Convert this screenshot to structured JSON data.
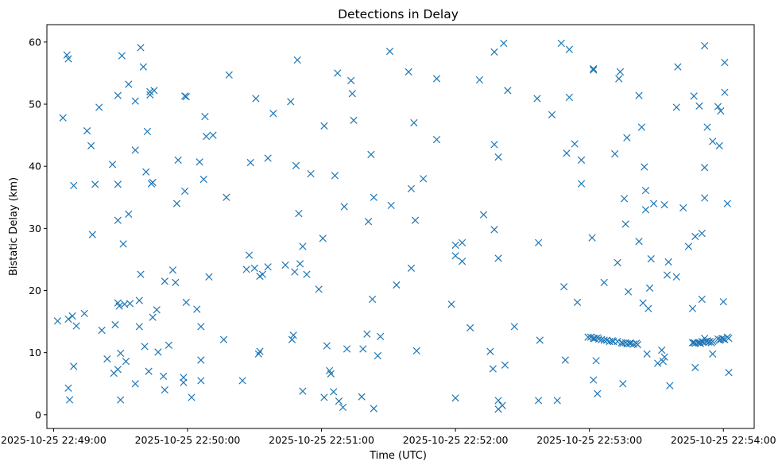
{
  "chart_data": {
    "type": "scatter",
    "title": "Detections in Delay",
    "xlabel": "Time (UTC)",
    "ylabel": "Bistatic Delay (km)",
    "x_units": "minutes after 2025-10-25 22:49:00 UTC",
    "xlim": [
      -0.05,
      5.23
    ],
    "ylim": [
      -2.2,
      62.8
    ],
    "xticks": [
      0,
      1,
      2,
      3,
      4,
      5
    ],
    "xtick_labels": [
      "2025-10-25 22:49:00",
      "2025-10-25 22:50:00",
      "2025-10-25 22:51:00",
      "2025-10-25 22:52:00",
      "2025-10-25 22:53:00",
      "2025-10-25 22:54:00"
    ],
    "yticks": [
      0,
      10,
      20,
      30,
      40,
      50,
      60
    ],
    "ytick_labels": [
      "0",
      "10",
      "20",
      "30",
      "40",
      "50",
      "60"
    ],
    "marker": "x",
    "color": "#1f77b4",
    "series": [
      {
        "name": "detections",
        "points": [
          [
            0.03,
            15.1
          ],
          [
            0.07,
            47.8
          ],
          [
            0.1,
            57.9
          ],
          [
            0.11,
            57.3
          ],
          [
            0.11,
            4.3
          ],
          [
            0.12,
            2.4
          ],
          [
            0.11,
            15.4
          ],
          [
            0.14,
            15.9
          ],
          [
            0.15,
            7.8
          ],
          [
            0.15,
            36.9
          ],
          [
            0.17,
            14.3
          ],
          [
            0.23,
            16.3
          ],
          [
            0.25,
            45.7
          ],
          [
            0.28,
            43.3
          ],
          [
            0.29,
            29.0
          ],
          [
            0.31,
            37.1
          ],
          [
            0.34,
            49.5
          ],
          [
            0.36,
            13.6
          ],
          [
            0.4,
            9.0
          ],
          [
            0.44,
            40.3
          ],
          [
            0.45,
            6.7
          ],
          [
            0.46,
            14.5
          ],
          [
            0.48,
            7.3
          ],
          [
            0.48,
            37.1
          ],
          [
            0.48,
            31.3
          ],
          [
            0.48,
            51.4
          ],
          [
            0.48,
            18.0
          ],
          [
            0.49,
            17.5
          ],
          [
            0.5,
            2.4
          ],
          [
            0.5,
            9.9
          ],
          [
            0.51,
            57.8
          ],
          [
            0.52,
            27.5
          ],
          [
            0.53,
            17.8
          ],
          [
            0.54,
            8.6
          ],
          [
            0.56,
            32.3
          ],
          [
            0.56,
            53.2
          ],
          [
            0.57,
            17.9
          ],
          [
            0.61,
            42.6
          ],
          [
            0.61,
            50.5
          ],
          [
            0.61,
            5.0
          ],
          [
            0.64,
            14.2
          ],
          [
            0.64,
            18.4
          ],
          [
            0.65,
            22.6
          ],
          [
            0.65,
            59.1
          ],
          [
            0.67,
            56.0
          ],
          [
            0.68,
            11.0
          ],
          [
            0.69,
            39.1
          ],
          [
            0.7,
            45.6
          ],
          [
            0.71,
            7.0
          ],
          [
            0.72,
            51.5
          ],
          [
            0.72,
            52.0
          ],
          [
            0.73,
            37.2
          ],
          [
            0.74,
            37.4
          ],
          [
            0.74,
            15.7
          ],
          [
            0.75,
            52.2
          ],
          [
            0.77,
            16.9
          ],
          [
            0.78,
            10.1
          ],
          [
            0.82,
            6.2
          ],
          [
            0.83,
            21.5
          ],
          [
            0.83,
            4.0
          ],
          [
            0.86,
            11.2
          ],
          [
            0.89,
            23.3
          ],
          [
            0.91,
            21.3
          ],
          [
            0.92,
            34.0
          ],
          [
            0.93,
            41.0
          ],
          [
            0.97,
            5.2
          ],
          [
            0.97,
            6.0
          ],
          [
            0.98,
            36.0
          ],
          [
            0.98,
            51.3
          ],
          [
            0.99,
            51.2
          ],
          [
            0.99,
            18.1
          ],
          [
            1.03,
            2.8
          ],
          [
            1.07,
            17.0
          ],
          [
            1.09,
            40.7
          ],
          [
            1.1,
            14.2
          ],
          [
            1.1,
            8.8
          ],
          [
            1.1,
            5.5
          ],
          [
            1.12,
            37.9
          ],
          [
            1.13,
            48.0
          ],
          [
            1.14,
            44.8
          ],
          [
            1.16,
            22.2
          ],
          [
            1.19,
            45.0
          ],
          [
            1.27,
            12.1
          ],
          [
            1.29,
            35.0
          ],
          [
            1.31,
            54.7
          ],
          [
            1.41,
            5.5
          ],
          [
            1.44,
            23.4
          ],
          [
            1.46,
            25.7
          ],
          [
            1.47,
            40.6
          ],
          [
            1.5,
            23.6
          ],
          [
            1.51,
            50.9
          ],
          [
            1.53,
            9.8
          ],
          [
            1.54,
            22.3
          ],
          [
            1.54,
            10.2
          ],
          [
            1.56,
            22.6
          ],
          [
            1.6,
            41.3
          ],
          [
            1.6,
            23.8
          ],
          [
            1.64,
            48.5
          ],
          [
            1.73,
            24.1
          ],
          [
            1.77,
            50.4
          ],
          [
            1.78,
            12.1
          ],
          [
            1.79,
            12.8
          ],
          [
            1.8,
            23.0
          ],
          [
            1.81,
            40.1
          ],
          [
            1.83,
            32.4
          ],
          [
            1.82,
            57.1
          ],
          [
            1.84,
            24.3
          ],
          [
            1.86,
            27.1
          ],
          [
            1.86,
            3.8
          ],
          [
            1.89,
            22.6
          ],
          [
            1.92,
            38.8
          ],
          [
            1.98,
            20.2
          ],
          [
            2.01,
            28.4
          ],
          [
            2.02,
            46.5
          ],
          [
            2.02,
            2.8
          ],
          [
            2.04,
            11.1
          ],
          [
            2.06,
            7.1
          ],
          [
            2.07,
            6.6
          ],
          [
            2.09,
            3.7
          ],
          [
            2.1,
            38.5
          ],
          [
            2.12,
            55.0
          ],
          [
            2.13,
            2.2
          ],
          [
            2.16,
            1.2
          ],
          [
            2.17,
            33.5
          ],
          [
            2.19,
            10.6
          ],
          [
            2.22,
            53.8
          ],
          [
            2.23,
            51.7
          ],
          [
            2.24,
            47.4
          ],
          [
            2.3,
            2.9
          ],
          [
            2.31,
            10.6
          ],
          [
            2.34,
            13.0
          ],
          [
            2.35,
            31.1
          ],
          [
            2.37,
            41.9
          ],
          [
            2.38,
            18.6
          ],
          [
            2.39,
            1.0
          ],
          [
            2.39,
            35.0
          ],
          [
            2.42,
            9.5
          ],
          [
            2.44,
            12.6
          ],
          [
            2.51,
            58.5
          ],
          [
            2.52,
            33.7
          ],
          [
            2.56,
            20.9
          ],
          [
            2.65,
            55.2
          ],
          [
            2.67,
            23.6
          ],
          [
            2.67,
            36.4
          ],
          [
            2.69,
            47.0
          ],
          [
            2.7,
            31.3
          ],
          [
            2.71,
            10.3
          ],
          [
            2.76,
            38.0
          ],
          [
            2.86,
            54.1
          ],
          [
            2.86,
            44.3
          ],
          [
            2.97,
            17.8
          ],
          [
            3.0,
            2.7
          ],
          [
            3.0,
            27.3
          ],
          [
            3.0,
            25.6
          ],
          [
            3.05,
            27.7
          ],
          [
            3.05,
            24.7
          ],
          [
            3.11,
            14.0
          ],
          [
            3.18,
            53.9
          ],
          [
            3.21,
            32.2
          ],
          [
            3.26,
            10.2
          ],
          [
            3.28,
            7.4
          ],
          [
            3.29,
            43.5
          ],
          [
            3.29,
            29.8
          ],
          [
            3.29,
            58.4
          ],
          [
            3.32,
            2.3
          ],
          [
            3.32,
            41.5
          ],
          [
            3.32,
            25.2
          ],
          [
            3.32,
            0.9
          ],
          [
            3.35,
            1.5
          ],
          [
            3.36,
            59.8
          ],
          [
            3.37,
            8.0
          ],
          [
            3.39,
            52.2
          ],
          [
            3.44,
            14.2
          ],
          [
            3.61,
            50.9
          ],
          [
            3.62,
            27.7
          ],
          [
            3.62,
            2.3
          ],
          [
            3.63,
            12.0
          ],
          [
            3.72,
            48.3
          ],
          [
            3.76,
            2.3
          ],
          [
            3.79,
            59.8
          ],
          [
            3.81,
            20.6
          ],
          [
            3.82,
            8.8
          ],
          [
            3.83,
            42.1
          ],
          [
            3.85,
            51.1
          ],
          [
            3.85,
            58.8
          ],
          [
            3.89,
            43.6
          ],
          [
            3.91,
            18.1
          ],
          [
            3.94,
            41.0
          ],
          [
            3.94,
            37.2
          ],
          [
            3.99,
            12.5
          ],
          [
            4.01,
            12.5
          ],
          [
            4.03,
            12.3
          ],
          [
            4.04,
            12.3
          ],
          [
            4.06,
            12.4
          ],
          [
            4.07,
            12.2
          ],
          [
            4.09,
            12.1
          ],
          [
            4.11,
            12.0
          ],
          [
            4.13,
            12.0
          ],
          [
            4.15,
            11.8
          ],
          [
            4.17,
            11.9
          ],
          [
            4.18,
            11.8
          ],
          [
            4.21,
            11.8
          ],
          [
            4.24,
            11.6
          ],
          [
            4.25,
            11.5
          ],
          [
            4.27,
            11.6
          ],
          [
            4.28,
            11.4
          ],
          [
            4.3,
            11.5
          ],
          [
            4.31,
            11.5
          ],
          [
            4.33,
            11.4
          ],
          [
            4.35,
            11.5
          ],
          [
            4.36,
            11.3
          ],
          [
            4.02,
            28.5
          ],
          [
            4.03,
            55.7
          ],
          [
            4.03,
            55.5
          ],
          [
            4.03,
            5.6
          ],
          [
            4.05,
            8.7
          ],
          [
            4.06,
            3.4
          ],
          [
            4.11,
            21.3
          ],
          [
            4.19,
            42.0
          ],
          [
            4.21,
            24.5
          ],
          [
            4.22,
            54.1
          ],
          [
            4.23,
            55.2
          ],
          [
            4.25,
            5.0
          ],
          [
            4.26,
            34.8
          ],
          [
            4.27,
            30.7
          ],
          [
            4.28,
            44.6
          ],
          [
            4.29,
            19.8
          ],
          [
            4.37,
            51.4
          ],
          [
            4.37,
            27.9
          ],
          [
            4.39,
            46.3
          ],
          [
            4.4,
            18.0
          ],
          [
            4.41,
            39.9
          ],
          [
            4.42,
            33.0
          ],
          [
            4.42,
            36.1
          ],
          [
            4.43,
            9.8
          ],
          [
            4.44,
            17.1
          ],
          [
            4.45,
            20.4
          ],
          [
            4.46,
            25.1
          ],
          [
            4.48,
            34.0
          ],
          [
            4.51,
            8.3
          ],
          [
            4.54,
            10.4
          ],
          [
            4.56,
            33.8
          ],
          [
            4.55,
            8.6
          ],
          [
            4.56,
            9.3
          ],
          [
            4.58,
            22.5
          ],
          [
            4.59,
            24.6
          ],
          [
            4.6,
            4.7
          ],
          [
            4.65,
            22.2
          ],
          [
            4.65,
            49.5
          ],
          [
            4.66,
            56.0
          ],
          [
            4.7,
            33.3
          ],
          [
            4.74,
            27.1
          ],
          [
            4.77,
            17.1
          ],
          [
            4.77,
            11.6
          ],
          [
            4.78,
            11.6
          ],
          [
            4.79,
            11.5
          ],
          [
            4.81,
            11.6
          ],
          [
            4.82,
            11.6
          ],
          [
            4.83,
            11.5
          ],
          [
            4.84,
            11.8
          ],
          [
            4.85,
            11.7
          ],
          [
            4.86,
            12.3
          ],
          [
            4.87,
            11.8
          ],
          [
            4.88,
            11.9
          ],
          [
            4.89,
            11.7
          ],
          [
            4.9,
            11.8
          ],
          [
            4.91,
            11.6
          ],
          [
            4.92,
            11.8
          ],
          [
            4.96,
            12.2
          ],
          [
            4.97,
            12.0
          ],
          [
            4.98,
            12.1
          ],
          [
            4.99,
            12.3
          ],
          [
            5.0,
            12.2
          ],
          [
            5.01,
            12.1
          ],
          [
            5.03,
            12.5
          ],
          [
            5.04,
            12.3
          ],
          [
            4.78,
            51.3
          ],
          [
            4.79,
            7.6
          ],
          [
            4.79,
            28.7
          ],
          [
            4.82,
            49.7
          ],
          [
            4.84,
            29.2
          ],
          [
            4.84,
            18.6
          ],
          [
            4.86,
            34.9
          ],
          [
            4.86,
            39.8
          ],
          [
            4.86,
            59.4
          ],
          [
            4.88,
            46.3
          ],
          [
            4.92,
            44.0
          ],
          [
            4.92,
            9.8
          ],
          [
            4.96,
            49.6
          ],
          [
            4.97,
            43.3
          ],
          [
            4.98,
            48.9
          ],
          [
            5.0,
            18.2
          ],
          [
            5.01,
            56.7
          ],
          [
            5.01,
            51.9
          ],
          [
            5.03,
            34.0
          ],
          [
            5.04,
            6.8
          ]
        ]
      }
    ]
  }
}
